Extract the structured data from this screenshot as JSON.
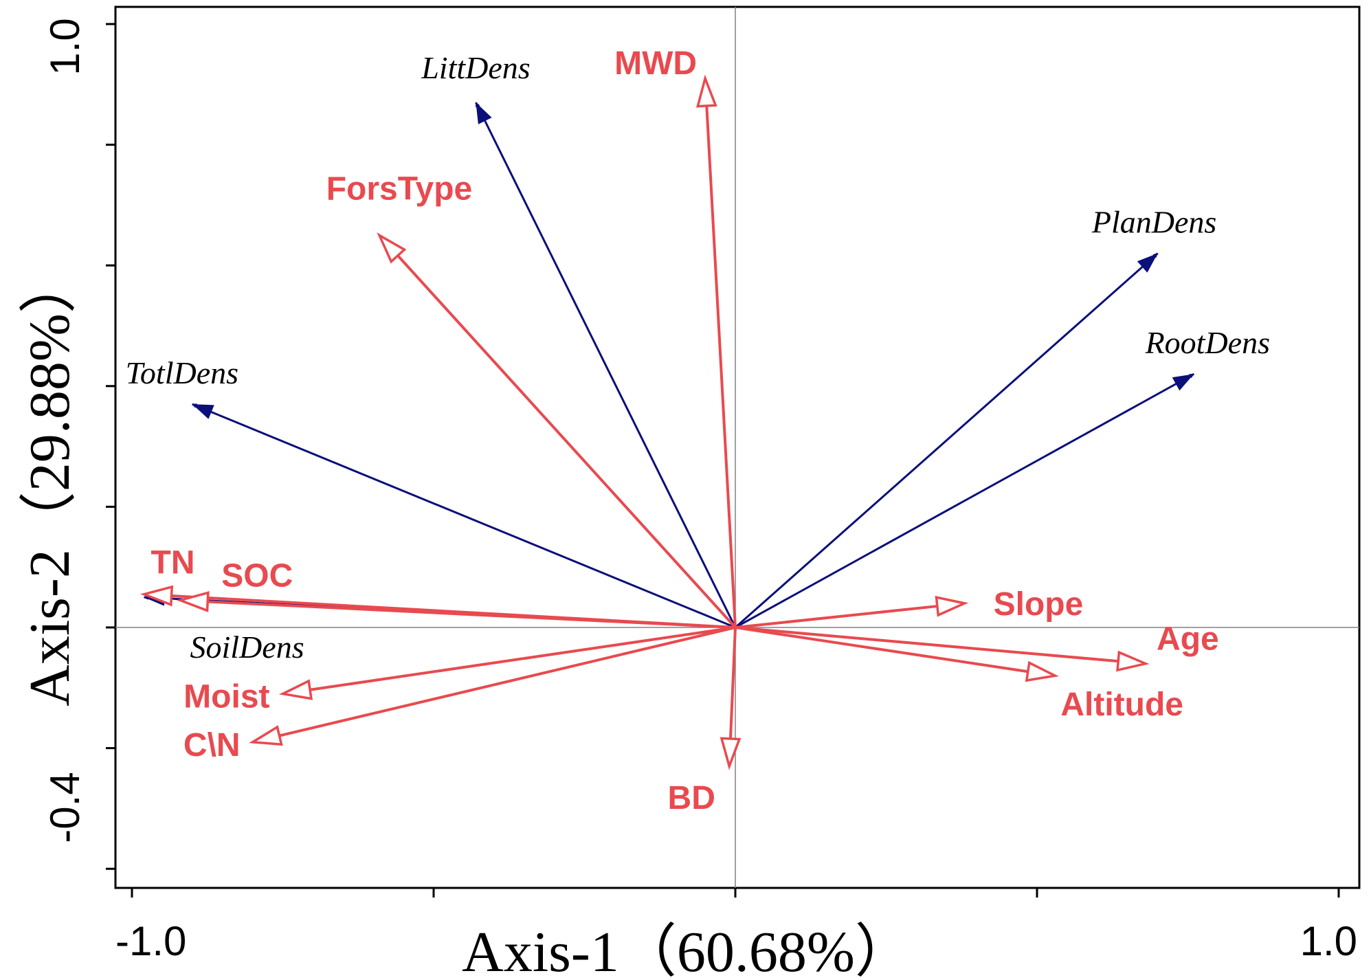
{
  "chart_data": {
    "type": "biplot",
    "xlabel": "Axis-1（60.68%）",
    "ylabel": "Axis-2（29.88%）",
    "xlim": [
      -1.0,
      1.0
    ],
    "ylim": [
      -0.4,
      1.0
    ],
    "x_tick_labels": [
      "-1.0",
      "1.0"
    ],
    "y_tick_labels": [
      "-0.4",
      "1.0"
    ],
    "x_ticks": [
      -1.0,
      -0.5,
      0.0,
      0.5,
      1.0
    ],
    "y_ticks": [
      -0.4,
      -0.2,
      0.0,
      0.2,
      0.4,
      0.6,
      0.8,
      1.0
    ],
    "colors": {
      "environment": "#e84a4f",
      "species": "#0b0f7a"
    },
    "environment_vectors": [
      {
        "label": "MWD",
        "x": -0.05,
        "y": 0.91
      },
      {
        "label": "ForsType",
        "x": -0.59,
        "y": 0.65
      },
      {
        "label": "TN",
        "x": -0.98,
        "y": 0.055
      },
      {
        "label": "SOC",
        "x": -0.92,
        "y": 0.045
      },
      {
        "label": "Moist",
        "x": -0.75,
        "y": -0.11
      },
      {
        "label": "C\\N",
        "x": -0.8,
        "y": -0.19
      },
      {
        "label": "BD",
        "x": -0.01,
        "y": -0.23
      },
      {
        "label": "Slope",
        "x": 0.38,
        "y": 0.04
      },
      {
        "label": "Age",
        "x": 0.68,
        "y": -0.06
      },
      {
        "label": "Altitude",
        "x": 0.53,
        "y": -0.08
      }
    ],
    "species_vectors": [
      {
        "label": "LittDens",
        "x": -0.43,
        "y": 0.87
      },
      {
        "label": "PlanDens",
        "x": 0.7,
        "y": 0.62
      },
      {
        "label": "RootDens",
        "x": 0.76,
        "y": 0.42
      },
      {
        "label": "TotlDens",
        "x": -0.9,
        "y": 0.37
      },
      {
        "label": "SoilDens",
        "x": -0.98,
        "y": 0.05
      }
    ]
  }
}
